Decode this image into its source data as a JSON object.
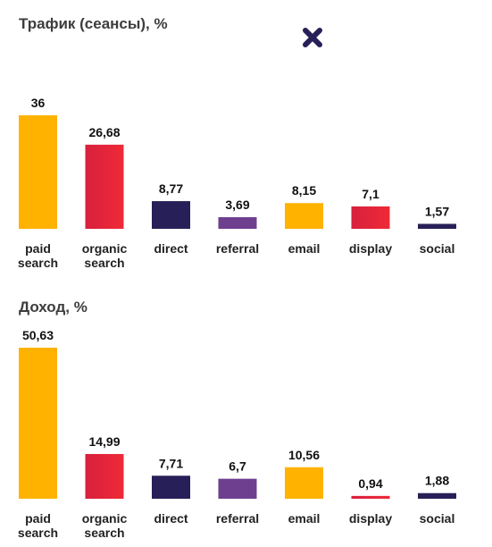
{
  "colors": {
    "orange": "#FFB200",
    "red": "#E8243C",
    "navy": "#271F57",
    "purple": "#6E3F8F",
    "deco": "#271F57"
  },
  "decoration": {
    "icon": "x-mark-icon"
  },
  "chart_data": [
    {
      "type": "bar",
      "title": "Трафик (сеансы), %",
      "categories": [
        [
          "paid",
          "search"
        ],
        [
          "organic",
          "search"
        ],
        [
          "direct"
        ],
        [
          "referral"
        ],
        [
          "email"
        ],
        [
          "display"
        ],
        [
          "social"
        ]
      ],
      "values": [
        36,
        26.68,
        8.77,
        3.69,
        8.15,
        7.1,
        1.57
      ],
      "value_labels": [
        "36",
        "26,68",
        "8,77",
        "3,69",
        "8,15",
        "7,1",
        "1,57"
      ],
      "bar_colors": [
        "orange",
        "red",
        "navy",
        "purple",
        "orange",
        "red",
        "navy"
      ],
      "ylim": [
        0,
        36
      ],
      "grid": false,
      "legend": "none"
    },
    {
      "type": "bar",
      "title": "Доход, %",
      "categories": [
        [
          "paid",
          "search"
        ],
        [
          "organic",
          "search"
        ],
        [
          "direct"
        ],
        [
          "referral"
        ],
        [
          "email"
        ],
        [
          "display"
        ],
        [
          "social"
        ]
      ],
      "values": [
        50.63,
        14.99,
        7.71,
        6.7,
        10.56,
        0.94,
        1.88
      ],
      "value_labels": [
        "50,63",
        "14,99",
        "7,71",
        "6,7",
        "10,56",
        "0,94",
        "1,88"
      ],
      "bar_colors": [
        "orange",
        "red",
        "navy",
        "purple",
        "orange",
        "red",
        "navy"
      ],
      "ylim": [
        0,
        50.63
      ],
      "grid": false,
      "legend": "none"
    }
  ]
}
